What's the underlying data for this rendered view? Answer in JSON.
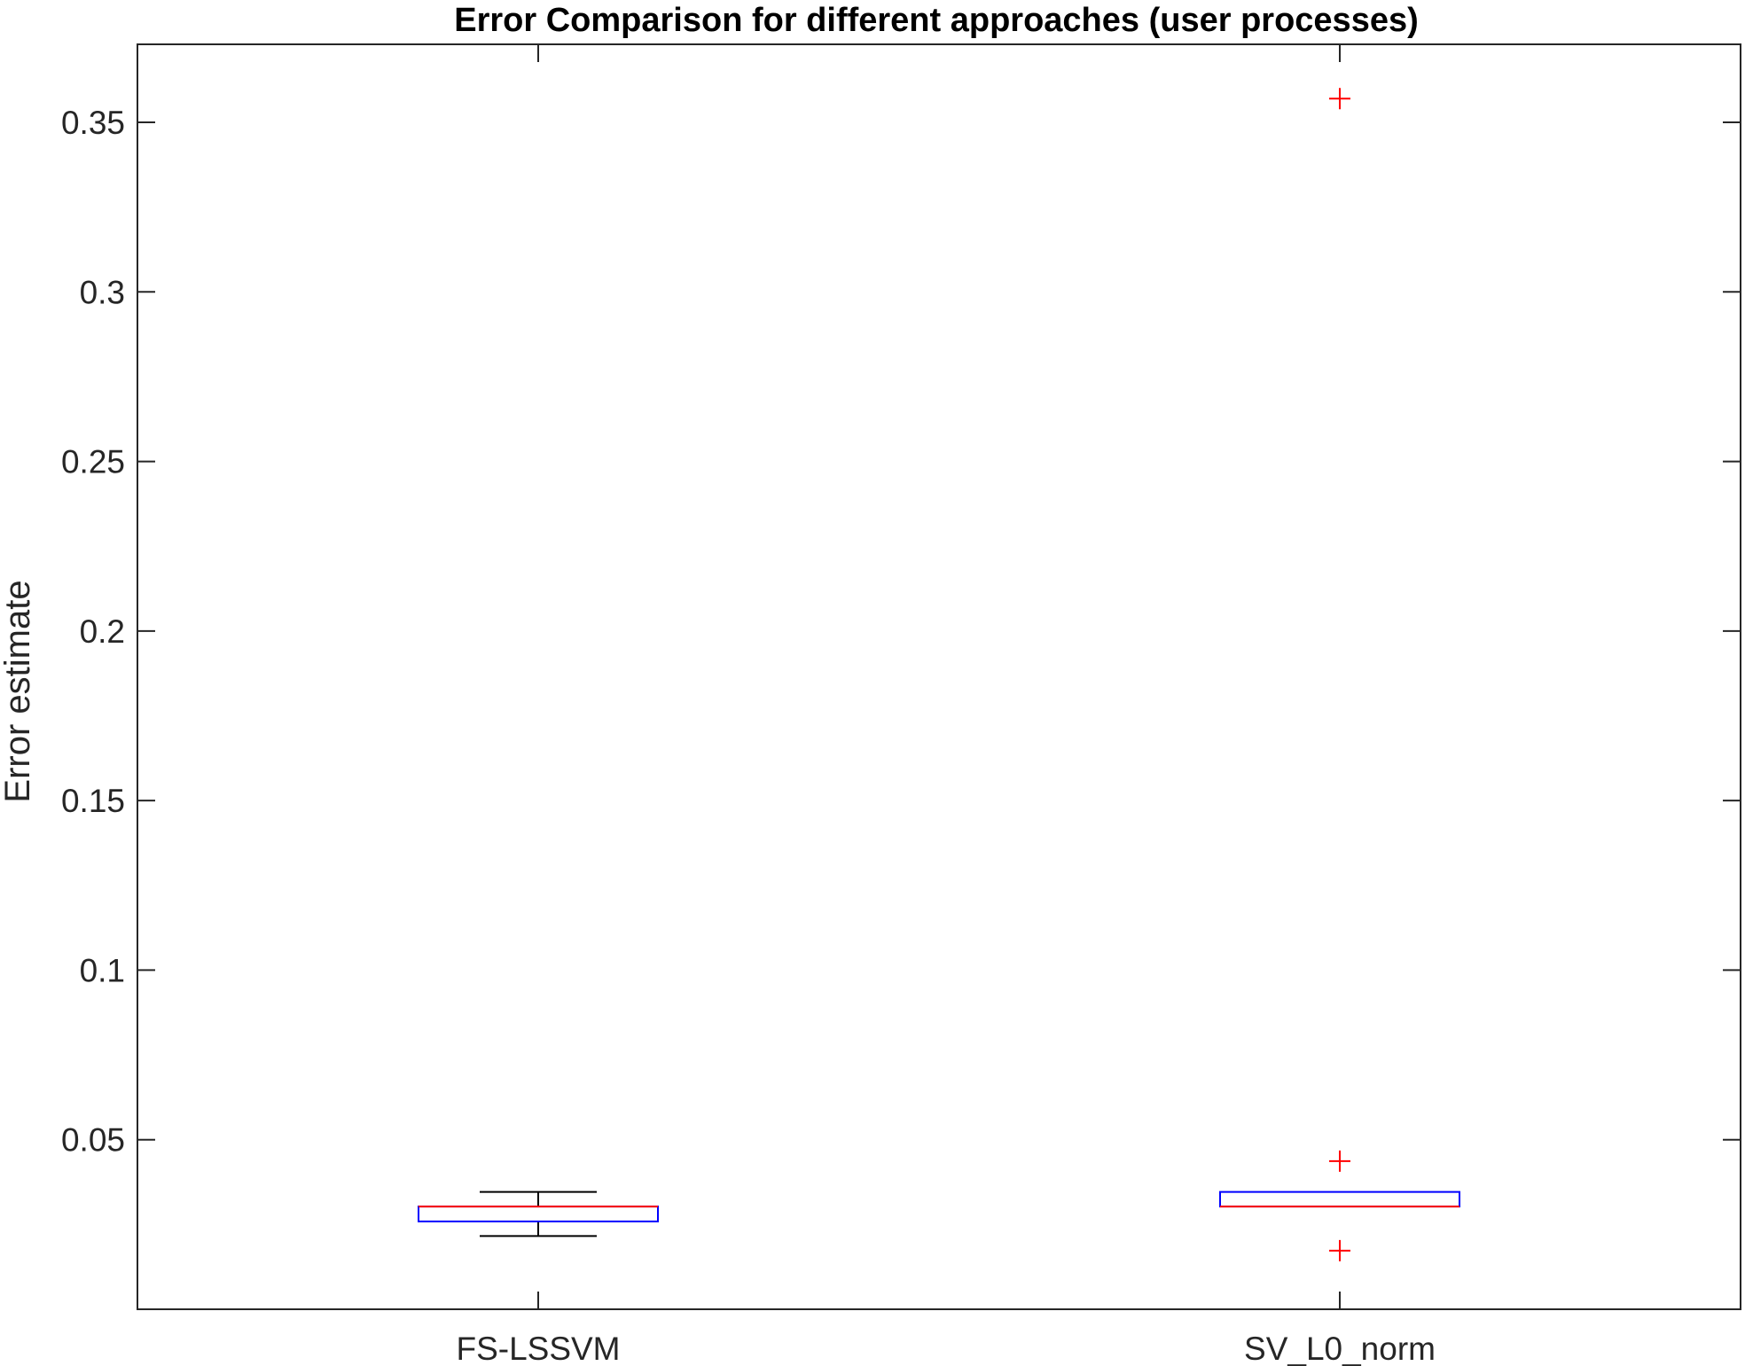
{
  "chart_data": {
    "type": "boxplot",
    "title": "Error Comparison for different approaches (user processes)",
    "xlabel": "",
    "ylabel": "Error estimate",
    "categories": [
      "FS-LSSVM",
      "SV_L0_norm"
    ],
    "ylim": [
      0.0,
      0.373
    ],
    "yticks": [
      0.05,
      0.1,
      0.15,
      0.2,
      0.25,
      0.3,
      0.35
    ],
    "ytick_labels": [
      "0.05",
      "0.1",
      "0.15",
      "0.2",
      "0.25",
      "0.3",
      "0.35"
    ],
    "grid": false,
    "boxes": [
      {
        "category": "FS-LSSVM",
        "whisker_low": 0.0216,
        "q1": 0.0259,
        "median": 0.0303,
        "q3": 0.0303,
        "whisker_high": 0.0346,
        "outliers": []
      },
      {
        "category": "SV_L0_norm",
        "whisker_low": 0.0303,
        "q1": 0.0303,
        "median": 0.0303,
        "q3": 0.0346,
        "whisker_high": 0.0346,
        "outliers": [
          0.357,
          0.0437,
          0.0173
        ]
      }
    ],
    "colors": {
      "box": "#0000ff",
      "median": "#ff0000",
      "whisker": "#000000",
      "outlier": "#ff0000",
      "axis": "#262626",
      "text": "#262626"
    }
  }
}
